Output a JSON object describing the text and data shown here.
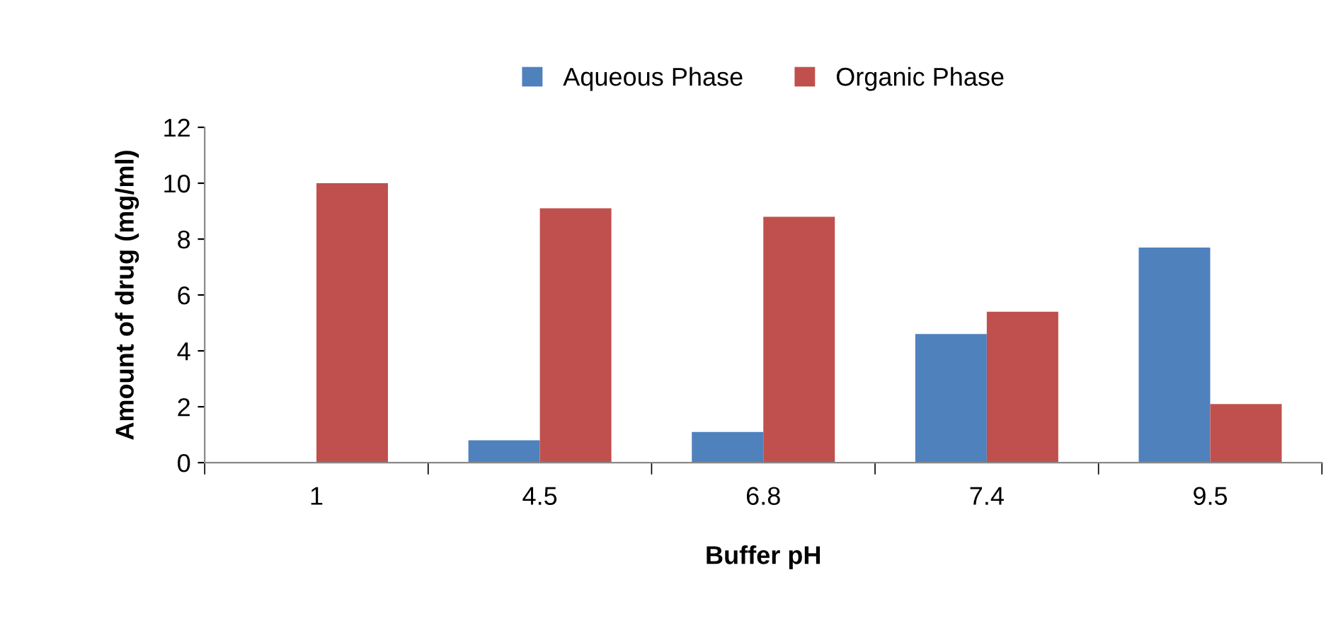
{
  "chart_data": {
    "type": "bar",
    "xlabel": "Buffer pH",
    "ylabel": "Amount of drug (mg/ml)",
    "categories": [
      "1",
      "4.5",
      "6.8",
      "7.4",
      "9.5"
    ],
    "series": [
      {
        "name": "Aqueous Phase",
        "color": "#4f81bd",
        "values": [
          0,
          0.8,
          1.1,
          4.6,
          7.7
        ]
      },
      {
        "name": "Organic Phase",
        "color": "#c0504d",
        "values": [
          10,
          9.1,
          8.8,
          5.4,
          2.1
        ]
      }
    ],
    "ylim": [
      0,
      12
    ],
    "yticks": [
      0,
      2,
      4,
      6,
      8,
      10,
      12
    ],
    "grid": false,
    "legend": "top"
  }
}
